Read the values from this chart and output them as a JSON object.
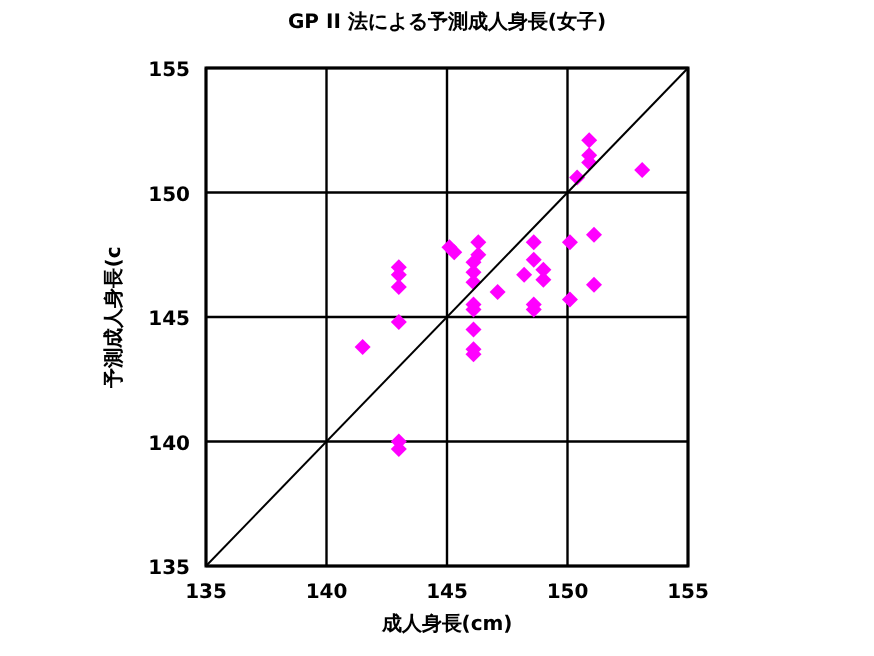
{
  "chart_data": {
    "type": "scatter",
    "title": "GP II 法による予測成人身長(女子)",
    "xlabel": "成人身長(cm)",
    "ylabel": "予測成人身長(c",
    "xlim": [
      135,
      155
    ],
    "ylim": [
      135,
      155
    ],
    "xticks": [
      135,
      140,
      145,
      150,
      155
    ],
    "yticks": [
      135,
      140,
      145,
      150,
      155
    ],
    "grid": true,
    "marker": "diamond",
    "series": [
      {
        "color": "#ff00ff",
        "x": [
          150.9,
          150.9,
          150.9,
          153.1,
          150.4,
          145.1,
          145.3,
          146.3,
          146.3,
          146.1,
          146.1,
          146.1,
          143.0,
          143.0,
          143.0,
          147.1,
          148.6,
          148.6,
          149.0,
          148.2,
          149.0,
          150.1,
          151.1,
          151.1,
          150.1,
          148.6,
          148.6,
          146.1,
          146.1,
          143.0,
          146.1,
          141.5,
          146.1,
          146.1,
          143.0,
          143.0
        ],
        "values": [
          152.1,
          151.5,
          151.2,
          150.9,
          150.6,
          147.8,
          147.6,
          148.0,
          147.5,
          147.2,
          146.8,
          146.4,
          147.0,
          146.7,
          146.2,
          146.0,
          148.0,
          147.3,
          146.9,
          146.7,
          146.5,
          148.0,
          148.3,
          146.3,
          145.7,
          145.5,
          145.3,
          145.5,
          145.3,
          144.8,
          144.5,
          143.8,
          143.7,
          143.5,
          140.0,
          139.7
        ]
      },
      {
        "type": "line",
        "color": "#000000",
        "marker": "none",
        "x": [
          135,
          155
        ],
        "values": [
          135,
          155
        ]
      }
    ]
  }
}
